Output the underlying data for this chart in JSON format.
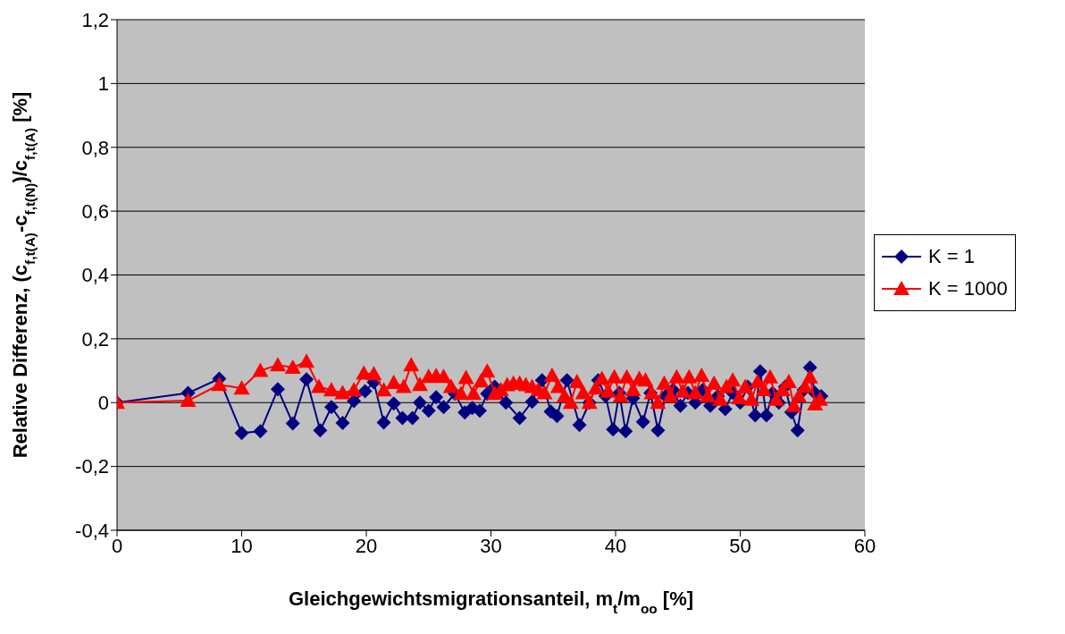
{
  "chart_data": {
    "type": "line",
    "xlabel": "Gleichgewichtsmigrationsanteil, m$_{t}$/m$_{oo}$ [%]",
    "ylabel": "Relative Differenz, (c$_{f,t(A)}$-c$_{f,t(N)}$)/c$_{f,t(A)}$ [%]",
    "xlim": [
      0,
      60
    ],
    "xticks": [
      0,
      10,
      20,
      30,
      40,
      50,
      60
    ],
    "ylim": [
      -0.4,
      1.2
    ],
    "yticks": [
      {
        "value": -0.4,
        "label": "-0,4"
      },
      {
        "value": -0.2,
        "label": "-0,2"
      },
      0,
      {
        "value": 0.2,
        "label": "0,2"
      },
      {
        "value": 0.4,
        "label": "0,4"
      },
      {
        "value": 0.6,
        "label": "0,6"
      },
      {
        "value": 0.8,
        "label": "0,8"
      },
      1,
      {
        "value": 1.2,
        "label": "1,2"
      }
    ],
    "grid": "y",
    "legend": "right",
    "line_style": "solid",
    "series": [
      {
        "name": "K = 1",
        "color": "#000080",
        "marker": "diamond",
        "x": [
          0,
          5.7,
          8.2,
          10,
          11.5,
          12.9,
          14.1,
          15.2,
          16.3,
          17.2,
          18.1,
          19,
          19.9,
          20.6,
          21.4,
          22.2,
          22.9,
          23.7,
          24.3,
          25,
          25.6,
          26.2,
          27.1,
          27.9,
          28.5,
          29.1,
          29.7,
          30.3,
          31.2,
          32.3,
          33.3,
          34.1,
          34.8,
          35.3,
          36.1,
          37.1,
          37.9,
          38.6,
          39.2,
          39.8,
          40.3,
          40.8,
          41.4,
          42.2,
          42.8,
          43.4,
          44,
          44.6,
          45.2,
          45.8,
          46.4,
          47,
          47.6,
          48.2,
          48.8,
          49.4,
          50,
          50.6,
          51.2,
          51.6,
          52.1,
          52.6,
          53.1,
          53.6,
          54.1,
          54.6,
          55.1,
          55.6,
          56,
          56.5
        ],
        "values": [
          0,
          0.03,
          0.075,
          -0.095,
          -0.09,
          0.042,
          -0.065,
          0.073,
          -0.087,
          -0.014,
          -0.064,
          0.005,
          0.036,
          0.064,
          -0.062,
          -0.003,
          -0.048,
          -0.048,
          0,
          -0.025,
          0.017,
          -0.014,
          0.028,
          -0.031,
          -0.017,
          -0.025,
          0.028,
          0.05,
          0,
          -0.048,
          0.003,
          0.07,
          -0.028,
          -0.042,
          0.07,
          -0.07,
          0,
          0.07,
          0.02,
          -0.084,
          0.03,
          -0.09,
          0.014,
          -0.06,
          0.03,
          -0.087,
          0.02,
          0.04,
          -0.01,
          0.03,
          0,
          0.04,
          -0.01,
          0.02,
          -0.02,
          0.03,
          0,
          0.05,
          -0.04,
          0.098,
          -0.04,
          0.03,
          0,
          0.05,
          -0.03,
          -0.087,
          0.04,
          0.11,
          0.03,
          0.02
        ]
      },
      {
        "name": "K = 1000",
        "color": "#ff0000",
        "marker": "triangle",
        "x": [
          0,
          5.7,
          8.2,
          10,
          11.5,
          12.9,
          14.1,
          15.2,
          16.2,
          17.2,
          18.1,
          19,
          19.8,
          20.6,
          21.4,
          22.2,
          23,
          23.6,
          24.3,
          25,
          25.6,
          26.2,
          26.8,
          27.6,
          28,
          28.6,
          29.2,
          29.7,
          30.3,
          30.8,
          31.3,
          31.8,
          32.3,
          32.8,
          33.3,
          33.8,
          34.3,
          34.9,
          35.4,
          35.9,
          36.4,
          36.9,
          37.4,
          37.9,
          38.4,
          38.9,
          39.4,
          39.9,
          40.4,
          40.9,
          41.4,
          41.9,
          42.4,
          42.9,
          43.4,
          43.9,
          44.4,
          44.9,
          45.4,
          45.9,
          46.4,
          46.9,
          47.4,
          47.9,
          48.4,
          48.9,
          49.4,
          49.9,
          50.4,
          50.9,
          51.4,
          51.9,
          52.4,
          52.9,
          53.4,
          53.9,
          54.3,
          54.7,
          55.2,
          55.6,
          56,
          56.4
        ],
        "values": [
          0,
          0.006,
          0.056,
          0.045,
          0.1,
          0.118,
          0.11,
          0.129,
          0.05,
          0.039,
          0.03,
          0.039,
          0.092,
          0.09,
          0.039,
          0.062,
          0.05,
          0.118,
          0.056,
          0.081,
          0.084,
          0.081,
          0.05,
          0.028,
          0.078,
          0.028,
          0.067,
          0.098,
          0.028,
          0.04,
          0.055,
          0.06,
          0.06,
          0.055,
          0.05,
          0.04,
          0.03,
          0.085,
          0.05,
          0.02,
          0,
          0.065,
          0.03,
          0,
          0.045,
          0.075,
          0.035,
          0.08,
          0.02,
          0.08,
          0.04,
          0.075,
          0.07,
          0.03,
          0,
          0.06,
          0.02,
          0.08,
          0.035,
          0.08,
          0.03,
          0.085,
          0.02,
          0.06,
          0.01,
          0.05,
          0.07,
          0.015,
          0.05,
          0.01,
          0.065,
          0.04,
          0.08,
          0.01,
          0.04,
          0.065,
          -0.01,
          0.02,
          0.05,
          0.08,
          -0.005,
          0.01
        ]
      }
    ]
  }
}
